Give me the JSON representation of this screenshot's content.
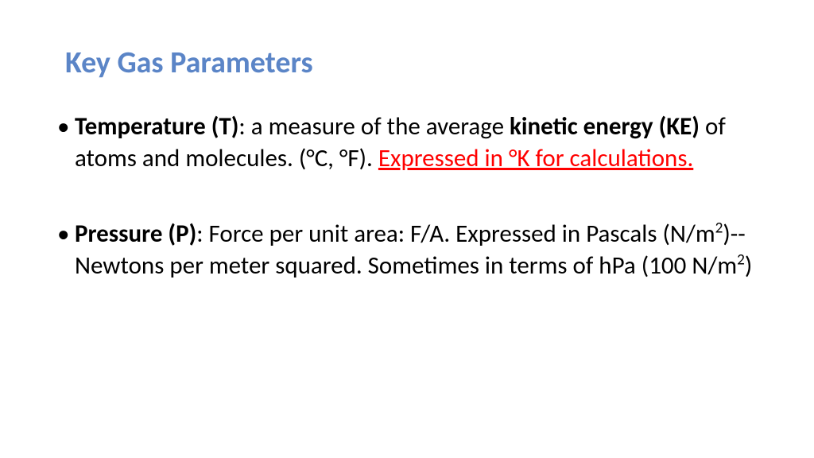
{
  "slide": {
    "title": "Key Gas Parameters",
    "title_color": "#5b85c7",
    "body_color": "#000000",
    "emphasis_color": "#ff0000",
    "background_color": "#ffffff",
    "title_fontsize": 38,
    "body_fontsize": 31,
    "bullets": [
      {
        "lead_bold": "Temperature (T)",
        "sep": ":  a measure of the average ",
        "inner_bold": "kinetic energy (KE) ",
        "tail": "of atoms and molecules. (°C, °F). ",
        "emph": "Expressed in °K for calculations."
      },
      {
        "lead_bold": "Pressure (P)",
        "sep": ":  Force per unit area: F/A.  Expressed in Pascals (N/m",
        "sup1": "2",
        "mid": ")-- Newtons per meter squared. Sometimes in terms of hPa (100 N/m",
        "sup2": "2",
        "close": ")"
      }
    ]
  }
}
